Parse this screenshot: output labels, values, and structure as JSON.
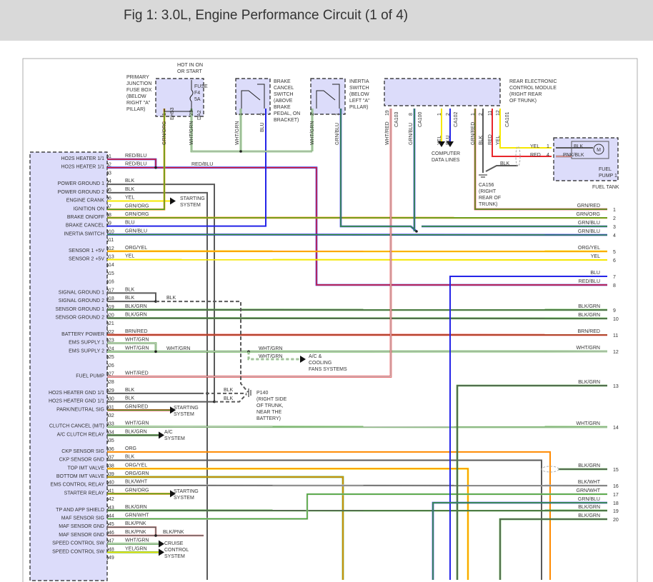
{
  "header": {
    "title": "Fig 1: 3.0L, Engine Performance Circuit (1 of 4)"
  },
  "wire_colors": {
    "RED": "#e8262b",
    "BLU": "#2424e8",
    "GRN": "#3fa62a",
    "ORG": "#ff8a00",
    "YEL": "#f5e800",
    "BLK": "#5a5a5a",
    "WHT": "#c8c8c8",
    "BRN": "#a0522d",
    "PNK": "#f4a0a0"
  },
  "component_fill": "#dcdcfa",
  "pins": [
    {
      "num": "1",
      "name": "HO2S HEATER 1/1",
      "wire": "RED/BLU"
    },
    {
      "num": "2",
      "name": "HO2S HEATER 1/1",
      "wire": "RED/BLU"
    },
    {
      "num": "3",
      "name": "",
      "wire": ""
    },
    {
      "num": "4",
      "name": "POWER GROUND 1",
      "wire": "BLK"
    },
    {
      "num": "5",
      "name": "POWER GROUND 2",
      "wire": "BLK"
    },
    {
      "num": "6",
      "name": "ENGINE CRANK",
      "wire": "YEL"
    },
    {
      "num": "7",
      "name": "IGNITION ON",
      "wire": "GRN/ORG"
    },
    {
      "num": "8",
      "name": "BRAKE ON/OFF",
      "wire": "GRN/ORG"
    },
    {
      "num": "9",
      "name": "BRAKE CANCEL",
      "wire": "BLU"
    },
    {
      "num": "10",
      "name": "INERTIA SWITCH",
      "wire": "GRN/BLU"
    },
    {
      "num": "11",
      "name": "",
      "wire": ""
    },
    {
      "num": "12",
      "name": "SENSOR 1 +5V",
      "wire": "ORG/YEL"
    },
    {
      "num": "13",
      "name": "SENSOR 2 +5V",
      "wire": "YEL"
    },
    {
      "num": "14",
      "name": "",
      "wire": ""
    },
    {
      "num": "15",
      "name": "",
      "wire": ""
    },
    {
      "num": "16",
      "name": "",
      "wire": ""
    },
    {
      "num": "17",
      "name": "SIGNAL GROUND 1",
      "wire": "BLK"
    },
    {
      "num": "18",
      "name": "SIGNAL GROUND 2",
      "wire": "BLK"
    },
    {
      "num": "19",
      "name": "SENSOR GROUND 1",
      "wire": "BLK/GRN"
    },
    {
      "num": "20",
      "name": "SENSOR GROUND 2",
      "wire": "BLK/GRN"
    },
    {
      "num": "21",
      "name": "",
      "wire": ""
    },
    {
      "num": "22",
      "name": "BATTERY POWER",
      "wire": "BRN/RED"
    },
    {
      "num": "23",
      "name": "EMS SUPPLY 1",
      "wire": "WHT/GRN"
    },
    {
      "num": "24",
      "name": "EMS SUPPLY 2",
      "wire": "WHT/GRN"
    },
    {
      "num": "25",
      "name": "",
      "wire": ""
    },
    {
      "num": "26",
      "name": "",
      "wire": ""
    },
    {
      "num": "27",
      "name": "FUEL PUMP",
      "wire": "WHT/RED"
    },
    {
      "num": "28",
      "name": "",
      "wire": ""
    },
    {
      "num": "29",
      "name": "HO2S HEATER GND 1/1",
      "wire": "BLK"
    },
    {
      "num": "30",
      "name": "HO2S HEATER GND 1/1",
      "wire": "BLK"
    },
    {
      "num": "31",
      "name": "PARK/NEUTRAL SIG",
      "wire": "GRN/RED"
    },
    {
      "num": "32",
      "name": "",
      "wire": ""
    },
    {
      "num": "33",
      "name": "CLUTCH CANCEL (M/T)",
      "wire": "WHT/GRN"
    },
    {
      "num": "34",
      "name": "A/C CLUTCH RELAY",
      "wire": "BLK/GRN"
    },
    {
      "num": "35",
      "name": "",
      "wire": ""
    },
    {
      "num": "36",
      "name": "CKP SENSOR SIG",
      "wire": "ORG"
    },
    {
      "num": "37",
      "name": "CKP SENSOR GND",
      "wire": "BLK"
    },
    {
      "num": "38",
      "name": "TOP IMT VALVE",
      "wire": "ORG/YEL"
    },
    {
      "num": "39",
      "name": "BOTTOM IMT VALVE",
      "wire": "ORG/GRN"
    },
    {
      "num": "40",
      "name": "EMS CONTROL RELAY",
      "wire": "BLK/WHT"
    },
    {
      "num": "41",
      "name": "STARTER RELAY",
      "wire": "GRN/ORG"
    },
    {
      "num": "42",
      "name": "",
      "wire": ""
    },
    {
      "num": "43",
      "name": "TP AND APP SHIELD",
      "wire": "BLK/GRN"
    },
    {
      "num": "44",
      "name": "MAF SENSOR SIG",
      "wire": "GRN/WHT"
    },
    {
      "num": "45",
      "name": "MAF SENSOR GND",
      "wire": "BLK/PNK"
    },
    {
      "num": "46",
      "name": "MAF SENSOR GND",
      "wire": "BLK/PNK"
    },
    {
      "num": "47",
      "name": "SPEED CONTROL SW",
      "wire": "WHT/GRN"
    },
    {
      "num": "48",
      "name": "SPEED CONTROL SW",
      "wire": "YEL/GRN"
    },
    {
      "num": "49",
      "name": "",
      "wire": ""
    }
  ],
  "right_terminals": [
    {
      "num": "1",
      "wire": "GRN/RED"
    },
    {
      "num": "2",
      "wire": "GRN/ORG"
    },
    {
      "num": "3",
      "wire": "GRN/BLU"
    },
    {
      "num": "4",
      "wire": "GRN/BLU"
    },
    {
      "num": "5",
      "wire": "ORG/YEL"
    },
    {
      "num": "6",
      "wire": "YEL"
    },
    {
      "num": "7",
      "wire": "BLU"
    },
    {
      "num": "8",
      "wire": "RED/BLU"
    },
    {
      "num": "9",
      "wire": "BLK/GRN"
    },
    {
      "num": "10",
      "wire": "BLK/GRN"
    },
    {
      "num": "11",
      "wire": "BRN/RED"
    },
    {
      "num": "12",
      "wire": "WHT/GRN"
    },
    {
      "num": "13",
      "wire": "BLK/GRN"
    },
    {
      "num": "14",
      "wire": "WHT/GRN"
    },
    {
      "num": "15",
      "wire": "BLK/GRN"
    },
    {
      "num": "16",
      "wire": "BLK/WHT"
    },
    {
      "num": "17",
      "wire": "GRN/WHT"
    },
    {
      "num": "18",
      "wire": "GRN/BLU"
    },
    {
      "num": "19",
      "wire": "BLK/GRN"
    },
    {
      "num": "20",
      "wire": "BLK/GRN"
    }
  ],
  "components": {
    "fuse_box": {
      "label": [
        "PRIMARY",
        "JUNCTION",
        "FUSE BOX",
        "(BELOW",
        "RIGHT \"A\"",
        "PILLAR)"
      ],
      "hot": [
        "HOT IN ON",
        "OR START"
      ],
      "fuse": [
        "FUSE",
        "F4",
        "5A"
      ],
      "pins": [
        {
          "num": "1",
          "wire": "GRN/ORG",
          "conn": "EH53"
        },
        {
          "num": "23",
          "wire": "WHT/GRN",
          "conn": "DA2"
        }
      ]
    },
    "brake_switch": {
      "label": [
        "BRAKE",
        "CANCEL",
        "SWITCH",
        "(ABOVE",
        "BRAKE",
        "PEDAL, ON",
        "BRACKET)"
      ],
      "pins": [
        {
          "num": "1",
          "wire": "WHT/GRN"
        },
        {
          "num": "2",
          "wire": "BLU"
        }
      ]
    },
    "inertia_switch": {
      "label": [
        "INERTIA",
        "SWITCH",
        "(BELOW",
        "LEFT \"A\"",
        "PILLAR)"
      ],
      "pins": [
        {
          "num": "2",
          "wire": "WHT/GRN"
        },
        {
          "num": "1",
          "wire": "GRN/BLU"
        }
      ]
    },
    "rear_ecm": {
      "label": [
        "REAR ELECTRONIC",
        "CONTROL MODULE",
        "(RIGHT REAR",
        "OF TRUNK)"
      ],
      "pins": [
        {
          "num": "19",
          "wire": "WHT/RED",
          "conn": "CA103"
        },
        {
          "num": "8",
          "wire": "GRN/BLU",
          "conn": "CA100"
        },
        {
          "num": "1",
          "wire": "YEL"
        },
        {
          "num": "2",
          "wire": "BLU",
          "conn": "CA102"
        },
        {
          "num": "1",
          "wire": "GRN/RED"
        },
        {
          "num": "2",
          "wire": "BLK"
        },
        {
          "num": "11",
          "wire": "RED"
        },
        {
          "num": "12",
          "wire": "YEL",
          "conn": "CA101"
        }
      ]
    },
    "fuel_pump": {
      "label": [
        "FUEL",
        "PUMP 1"
      ],
      "location": "FUEL TANK",
      "motor": "M",
      "pins": [
        {
          "num": "1",
          "wire": "YEL",
          "inner": "BLK"
        },
        {
          "num": "4",
          "wire": "RED",
          "inner": "PNK/BLK"
        }
      ],
      "ground_wire": "BLK"
    },
    "ground_ca156": [
      "CA156",
      "(RIGHT",
      "REAR OF",
      "TRUNK)"
    ],
    "ground_p140": [
      "P140",
      "(RIGHT SIDE",
      "OF TRUNK,",
      "NEAR THE",
      "BATTERY)"
    ],
    "computer_data_lines": [
      "COMPUTER",
      "DATA LINES"
    ]
  },
  "destinations": {
    "starting_system": [
      "STARTING",
      "SYSTEM"
    ],
    "ac_system": [
      "A/C",
      "SYSTEM"
    ],
    "ac_cooling": [
      "A/C &",
      "COOLING",
      "FANS SYSTEMS"
    ],
    "cruise": [
      "CRUISE",
      "CONTROL",
      "SYSTEM"
    ]
  },
  "splice_labels": {
    "red_blu": "RED/BLU",
    "sig_gnd": "BLK",
    "ems": "WHT/GRN",
    "ems_ac": "WHT/GRN",
    "gnd29": "BLK",
    "gnd30": "BLK",
    "maf_gnd": "BLK/PNK"
  }
}
